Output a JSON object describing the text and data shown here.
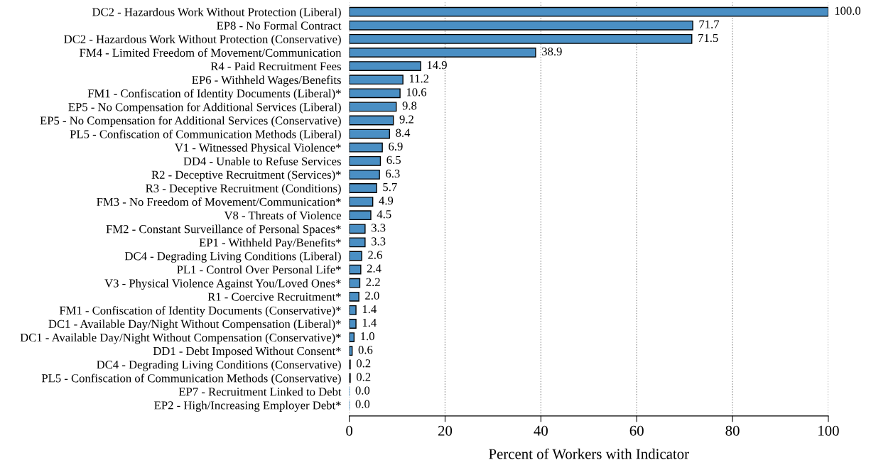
{
  "chart_data": {
    "type": "bar",
    "orientation": "horizontal",
    "xlabel": "Percent of Workers with Indicator",
    "categories": [
      "DC2 - Hazardous Work Without Protection (Liberal)",
      "EP8 - No Formal Contract",
      "DC2 - Hazardous Work Without Protection (Conservative)",
      "FM4 - Limited Freedom of Movement/Communication",
      "R4 - Paid Recruitment Fees",
      "EP6 - Withheld Wages/Benefits",
      "FM1 - Confiscation of Identity Documents (Liberal)*",
      "EP5 - No Compensation for Additional Services (Liberal)",
      "EP5 - No Compensation for Additional Services (Conservative)",
      "PL5 - Confiscation of Communication Methods (Liberal)",
      "V1 - Witnessed Physical Violence*",
      "DD4 - Unable to Refuse Services",
      "R2 - Deceptive Recruitment (Services)*",
      "R3 - Deceptive Recruitment (Conditions)",
      "FM3 - No Freedom of Movement/Communication*",
      "V8 - Threats of Violence",
      "FM2 - Constant Surveillance of Personal Spaces*",
      "EP1 - Withheld Pay/Benefits*",
      "DC4 - Degrading Living Conditions (Liberal)",
      "PL1 - Control Over Personal Life*",
      "V3 - Physical Violence Against You/Loved Ones*",
      "R1 - Coercive Recruitment*",
      "FM1 - Confiscation of Identity Documents (Conservative)*",
      "DC1 - Available Day/Night Without Compensation (Liberal)*",
      "DC1 - Available Day/Night Without Compensation (Conservative)*",
      "DD1 - Debt Imposed Without Consent*",
      "DC4 - Degrading Living Conditions (Conservative)",
      "PL5 - Confiscation of Communication Methods (Conservative)",
      "EP7 - Recruitment Linked to Debt",
      "EP2 - High/Increasing Employer Debt*"
    ],
    "values": [
      100.0,
      71.7,
      71.5,
      38.9,
      14.9,
      11.2,
      10.6,
      9.8,
      9.2,
      8.4,
      6.9,
      6.5,
      6.3,
      5.7,
      4.9,
      4.5,
      3.3,
      3.3,
      2.6,
      2.4,
      2.2,
      2.0,
      1.4,
      1.4,
      1.0,
      0.6,
      0.2,
      0.2,
      0.0,
      0.0
    ],
    "value_labels": [
      "100.0",
      "71.7",
      "71.5",
      "38.9",
      "14.9",
      "11.2",
      "10.6",
      "9.8",
      "9.2",
      "8.4",
      "6.9",
      "6.5",
      "6.3",
      "5.7",
      "4.9",
      "4.5",
      "3.3",
      "3.3",
      "2.6",
      "2.4",
      "2.2",
      "2.0",
      "1.4",
      "1.4",
      "1.0",
      "0.6",
      "0.2",
      "0.2",
      "0.0",
      "0.0"
    ],
    "color": "#4a8fc4",
    "xlim": [
      0,
      100
    ],
    "xticks": [
      0,
      20,
      40,
      60,
      80,
      100
    ],
    "grid": "x"
  }
}
